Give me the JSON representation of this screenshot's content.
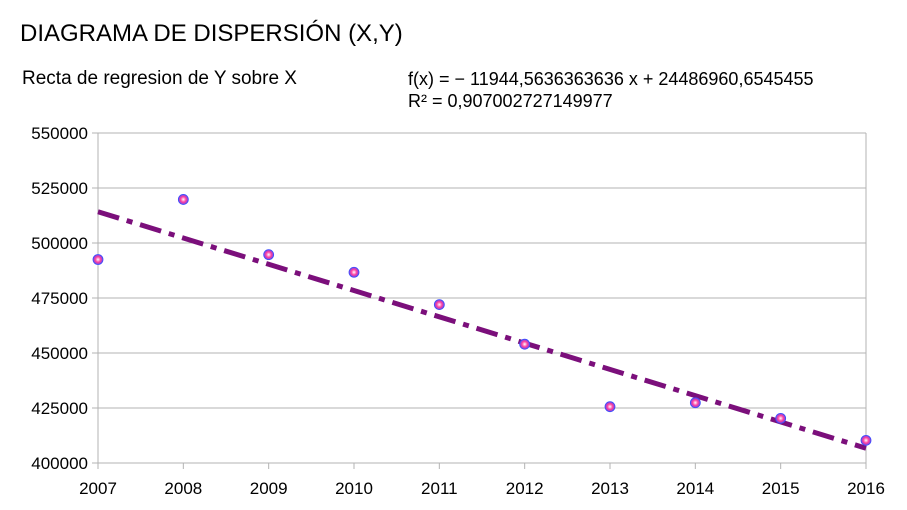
{
  "chart_data": {
    "type": "scatter",
    "title": "DIAGRAMA DE DISPERSIÓN (X,Y)",
    "subtitle": "Recta de regresion de Y sobre X",
    "trendline": {
      "equation": "f(x) = − 11944,5636363636 x + 24486960,6545455",
      "r_squared": "R² = 0,907002727149977",
      "slope": -11944.5636363636,
      "intercept": 24486960.6545455,
      "color": "#7b0f7b"
    },
    "x": [
      2007,
      2008,
      2009,
      2010,
      2011,
      2012,
      2013,
      2014,
      2015,
      2016
    ],
    "y": [
      492500,
      519800,
      494700,
      486700,
      472000,
      454000,
      425600,
      427400,
      420300,
      410300
    ],
    "xlim": [
      2007,
      2016
    ],
    "ylim": [
      400000,
      550000
    ],
    "xticks": [
      "2007",
      "2008",
      "2009",
      "2010",
      "2011",
      "2012",
      "2013",
      "2014",
      "2015",
      "2016"
    ],
    "yticks": [
      "400000",
      "425000",
      "450000",
      "475000",
      "500000",
      "525000",
      "550000"
    ],
    "grid": true,
    "point_color": "#5a3fff",
    "point_highlight": "#ff3fa0"
  }
}
